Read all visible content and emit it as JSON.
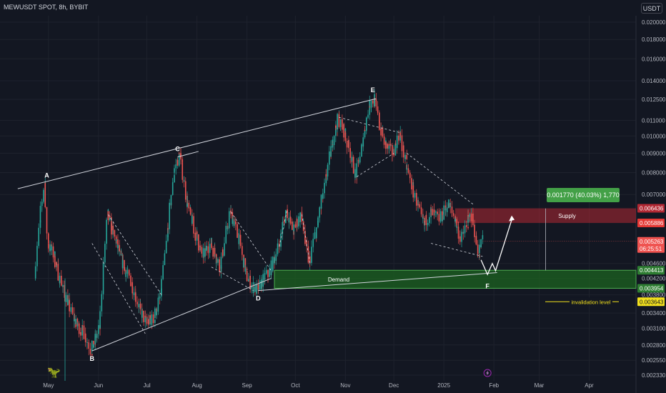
{
  "header": {
    "symbol": "MEWUSDT SPOT, 8h, BYBIT",
    "currency_button": "USDT"
  },
  "logo_icon": "dinosaur-icon",
  "lightning_icon": "lightning-icon",
  "colors": {
    "background": "#131722",
    "grid": "#1e222d",
    "text": "#b2b5be",
    "up": "#26a69a",
    "down": "#ef5350",
    "supply": "#b22833",
    "demand": "#1b5e20",
    "demand_label": "#4caf50",
    "target": "#43a047",
    "invalidation": "#f2e01d"
  },
  "chart_data": {
    "type": "candlestick",
    "timeframe": "8h",
    "y_scale": "log",
    "ylim": [
      0.00225,
      0.0208
    ],
    "y_ticks": [
      "0.020000",
      "0.018000",
      "0.016000",
      "0.014000",
      "0.012500",
      "0.011000",
      "0.010000",
      "0.009000",
      "0.008000",
      "0.007000",
      "0.004600",
      "0.004200",
      "0.003800",
      "0.003400",
      "0.003100",
      "0.002800",
      "0.002550",
      "0.002330"
    ],
    "x_ticks": [
      "May",
      "Jun",
      "Jul",
      "Aug",
      "Sep",
      "Oct",
      "Nov",
      "Dec",
      "2025",
      "Feb",
      "Mar",
      "Apr"
    ],
    "price_path": [
      [
        "2024-04-23",
        0.0042
      ],
      [
        "2024-04-26",
        0.0059
      ],
      [
        "2024-04-29",
        0.0075
      ],
      [
        "2024-05-01",
        0.0052
      ],
      [
        "2024-05-05",
        0.0048
      ],
      [
        "2024-05-10",
        0.004
      ],
      [
        "2024-05-14",
        0.0036
      ],
      [
        "2024-05-18",
        0.0032
      ],
      [
        "2024-05-24",
        0.003
      ],
      [
        "2024-05-28",
        0.0027
      ],
      [
        "2024-06-02",
        0.0031
      ],
      [
        "2024-06-07",
        0.0062
      ],
      [
        "2024-06-12",
        0.0053
      ],
      [
        "2024-06-17",
        0.0045
      ],
      [
        "2024-06-22",
        0.0041
      ],
      [
        "2024-06-27",
        0.0035
      ],
      [
        "2024-07-01",
        0.0032
      ],
      [
        "2024-07-06",
        0.0033
      ],
      [
        "2024-07-10",
        0.0038
      ],
      [
        "2024-07-14",
        0.0054
      ],
      [
        "2024-07-18",
        0.008
      ],
      [
        "2024-07-22",
        0.009
      ],
      [
        "2024-07-26",
        0.0068
      ],
      [
        "2024-07-30",
        0.0058
      ],
      [
        "2024-08-05",
        0.0048
      ],
      [
        "2024-08-10",
        0.0052
      ],
      [
        "2024-08-16",
        0.0045
      ],
      [
        "2024-08-22",
        0.0063
      ],
      [
        "2024-08-27",
        0.0055
      ],
      [
        "2024-09-01",
        0.0043
      ],
      [
        "2024-09-05",
        0.004
      ],
      [
        "2024-09-08",
        0.0039
      ],
      [
        "2024-09-12",
        0.0042
      ],
      [
        "2024-09-16",
        0.0044
      ],
      [
        "2024-09-21",
        0.0051
      ],
      [
        "2024-09-26",
        0.0064
      ],
      [
        "2024-09-30",
        0.0056
      ],
      [
        "2024-10-05",
        0.0062
      ],
      [
        "2024-10-10",
        0.0046
      ],
      [
        "2024-10-15",
        0.0058
      ],
      [
        "2024-10-20",
        0.0075
      ],
      [
        "2024-10-24",
        0.0095
      ],
      [
        "2024-10-28",
        0.0112
      ],
      [
        "2024-11-01",
        0.0102
      ],
      [
        "2024-11-05",
        0.0088
      ],
      [
        "2024-11-08",
        0.0078
      ],
      [
        "2024-11-12",
        0.0095
      ],
      [
        "2024-11-16",
        0.012
      ],
      [
        "2024-11-19",
        0.0126
      ],
      [
        "2024-11-22",
        0.011
      ],
      [
        "2024-11-26",
        0.0095
      ],
      [
        "2024-12-01",
        0.009
      ],
      [
        "2024-12-05",
        0.0102
      ],
      [
        "2024-12-09",
        0.0084
      ],
      [
        "2024-12-13",
        0.0073
      ],
      [
        "2024-12-16",
        0.0066
      ],
      [
        "2024-12-20",
        0.0058
      ],
      [
        "2024-12-24",
        0.0063
      ],
      [
        "2024-12-30",
        0.006
      ],
      [
        "2025-01-04",
        0.0066
      ],
      [
        "2025-01-08",
        0.0061
      ],
      [
        "2025-01-12",
        0.0053
      ],
      [
        "2025-01-16",
        0.0059
      ],
      [
        "2025-01-19",
        0.0062
      ],
      [
        "2025-01-21",
        0.0054
      ],
      [
        "2025-01-23",
        0.0049
      ],
      [
        "2025-01-25",
        0.0053
      ]
    ],
    "trendlines": [
      {
        "from": [
          "2024-04-12",
          0.00725
        ],
        "to": [
          "2024-11-20",
          0.01255
        ],
        "style": "solid"
      },
      {
        "from": [
          "2024-05-28",
          0.0027
        ],
        "to": [
          "2024-09-16",
          0.0042
        ],
        "style": "solid"
      },
      {
        "from": [
          "2024-09-08",
          0.0039
        ],
        "to": [
          "2025-02-03",
          0.00435
        ],
        "style": "solid"
      },
      {
        "from": [
          "2024-07-20",
          0.0088
        ],
        "to": [
          "2024-08-02",
          0.0091
        ],
        "style": "solid"
      }
    ],
    "wave_labels": [
      {
        "text": "A",
        "x": "2024-04-30",
        "y": 0.0075,
        "pos": "above"
      },
      {
        "text": "B",
        "x": "2024-05-28",
        "y": 0.0027,
        "pos": "below"
      },
      {
        "text": "C",
        "x": "2024-07-20",
        "y": 0.0088,
        "pos": "above"
      },
      {
        "text": "D",
        "x": "2024-09-08",
        "y": 0.0039,
        "pos": "below"
      },
      {
        "text": "E",
        "x": "2024-11-18",
        "y": 0.0126,
        "pos": "above"
      },
      {
        "text": "F",
        "x": "2025-01-28",
        "y": 0.0042,
        "pos": "below"
      }
    ],
    "zones": {
      "supply": {
        "label": "Supply",
        "top": 0.006436,
        "bottom": 0.005886,
        "from": "2025-01-08",
        "to": "2025-04-30",
        "top_label": "0.006436",
        "bottom_label": "0.005886"
      },
      "demand": {
        "label": "Demand",
        "top": 0.004413,
        "bottom": 0.003954,
        "from": "2024-09-18",
        "to": "2025-04-30",
        "top_label": "0.004413",
        "bottom_label": "0.003954"
      }
    },
    "current_price": {
      "value": 0.005263,
      "label": "0.005263",
      "countdown": "06:25:51"
    },
    "invalidation": {
      "label": "invalidation level",
      "value": 0.003643,
      "value_label": "0.003643"
    },
    "target": {
      "label": "0.001770 (40.03%) 1,770",
      "value": 0.00643
    }
  }
}
